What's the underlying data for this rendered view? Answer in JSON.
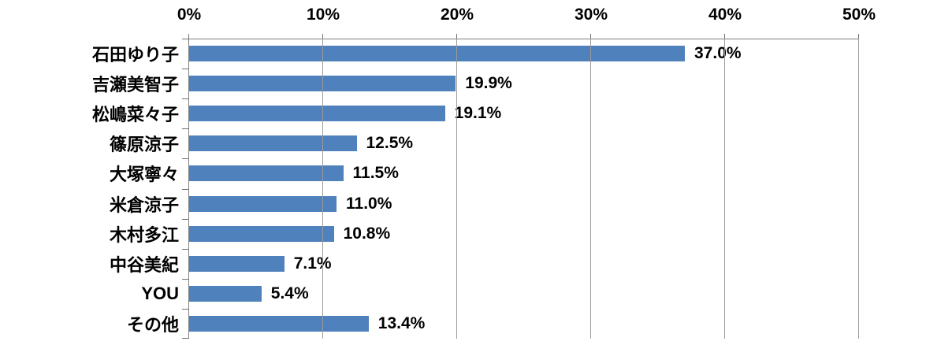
{
  "chart_data": {
    "type": "bar",
    "orientation": "horizontal",
    "title": "",
    "xlabel": "",
    "ylabel": "",
    "categories": [
      "石田ゆり子",
      "吉瀬美智子",
      "松嶋菜々子",
      "篠原涼子",
      "大塚寧々",
      "米倉涼子",
      "木村多江",
      "中谷美紀",
      "YOU",
      "その他"
    ],
    "values": [
      37.0,
      19.9,
      19.1,
      12.5,
      11.5,
      11.0,
      10.8,
      7.1,
      5.4,
      13.4
    ],
    "value_labels": [
      "37.0%",
      "19.9%",
      "19.1%",
      "12.5%",
      "11.5%",
      "11.0%",
      "10.8%",
      "7.1%",
      "5.4%",
      "13.4%"
    ],
    "x_ticks": [
      "0%",
      "10%",
      "20%",
      "30%",
      "40%",
      "50%"
    ],
    "x_tick_values": [
      0,
      10,
      20,
      30,
      40,
      50
    ],
    "xlim": [
      0,
      50
    ],
    "grid": true,
    "legend": false,
    "axis_position": "top",
    "colors": {
      "bar": "#4F81BD",
      "gridline": "#9B9B9B",
      "axis": "#808080",
      "tick": "#707070",
      "text": "#000000",
      "background": "#FFFFFF"
    }
  }
}
